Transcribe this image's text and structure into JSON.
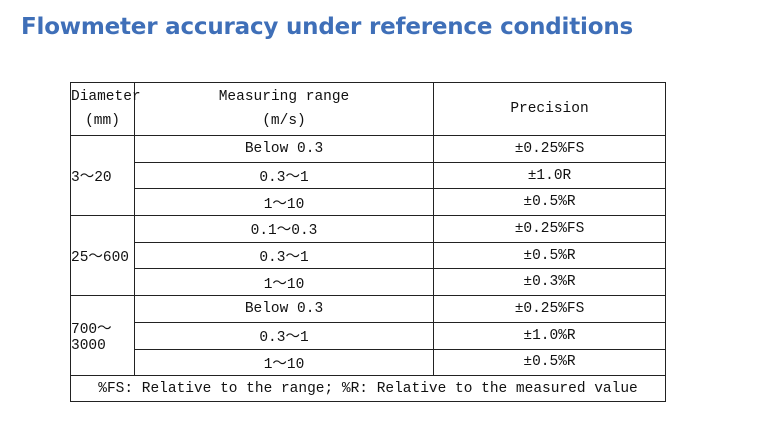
{
  "title": "Flowmeter accuracy under reference conditions",
  "table": {
    "headers": {
      "diameter": [
        "Diameter",
        "(mm)"
      ],
      "range": [
        "Measuring range",
        "(m/s)"
      ],
      "precision": "Precision"
    },
    "groups": [
      {
        "diameter": "3～20",
        "rows": [
          {
            "range": "Below 0.3",
            "precision": "±0.25%FS"
          },
          {
            "range": "0.3～1",
            "precision": "±1.0R"
          },
          {
            "range": "1～10",
            "precision": "±0.5%R"
          }
        ]
      },
      {
        "diameter": "25～600",
        "rows": [
          {
            "range": "0.1～0.3",
            "precision": "±0.25%FS"
          },
          {
            "range": "0.3～1",
            "precision": "±0.5%R"
          },
          {
            "range": "1～10",
            "precision": "±0.3%R"
          }
        ]
      },
      {
        "diameter": "700～3000",
        "rows": [
          {
            "range": "Below 0.3",
            "precision": "±0.25%FS"
          },
          {
            "range": "0.3～1",
            "precision": "±1.0%R"
          },
          {
            "range": "1～10",
            "precision": "±0.5%R"
          }
        ]
      }
    ],
    "footnote": "%FS: Relative to the range;  %R: Relative to the measured value"
  }
}
